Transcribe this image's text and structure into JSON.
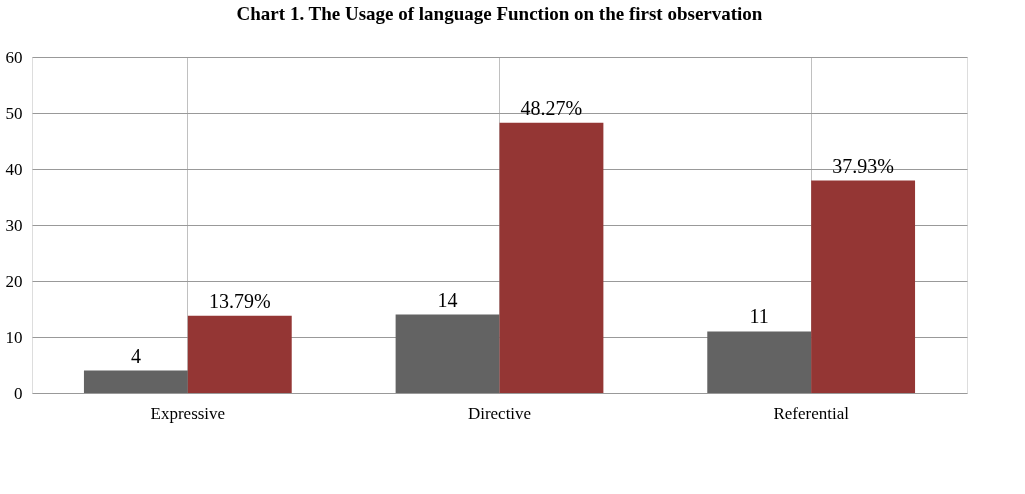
{
  "chart_data": {
    "type": "bar",
    "title": "Chart 1. The Usage of language Function on the first observation",
    "categories": [
      "Expressive",
      "Directive",
      "Referential"
    ],
    "series": [
      {
        "color": "#636363",
        "values": [
          4,
          14,
          11
        ],
        "value_labels": [
          "4",
          "14",
          "11"
        ]
      },
      {
        "color": "#943634",
        "values": [
          13.79,
          48.27,
          37.93
        ],
        "value_labels": [
          "13.79%",
          "48.27%",
          "37.93%"
        ]
      }
    ],
    "ylim": [
      0,
      60
    ],
    "yticks": [
      0,
      10,
      20,
      30,
      40,
      50,
      60
    ],
    "grid": true
  }
}
